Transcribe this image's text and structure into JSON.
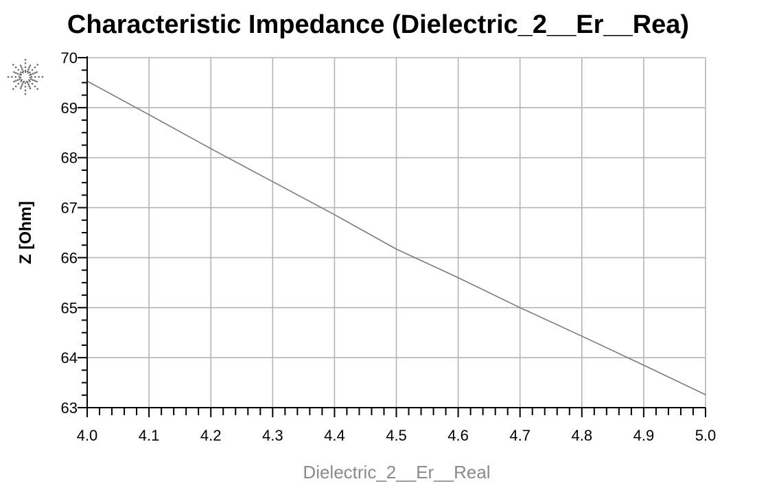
{
  "chart_data": {
    "type": "line",
    "title": "Characteristic Impedance (Dielectric_2__Er__Rea)",
    "xlabel": "Dielectric_2__Er__Real",
    "ylabel": "Z [Ohm]",
    "xlim": [
      4.0,
      5.0
    ],
    "ylim": [
      63,
      70
    ],
    "grid": true,
    "x_ticks": [
      "4.0",
      "4.1",
      "4.2",
      "4.3",
      "4.4",
      "4.5",
      "4.6",
      "4.7",
      "4.8",
      "4.9",
      "5.0"
    ],
    "y_ticks": [
      "63",
      "64",
      "65",
      "66",
      "67",
      "68",
      "69",
      "70"
    ],
    "series": [
      {
        "x": [
          4.0,
          4.1,
          4.2,
          4.3,
          4.4,
          4.5,
          4.6,
          4.7,
          4.8,
          4.9,
          5.0
        ],
        "y": [
          69.53,
          68.86,
          68.18,
          67.52,
          66.86,
          66.17,
          65.6,
          65.0,
          64.43,
          63.85,
          63.26
        ],
        "color": "#7a7a7a"
      }
    ]
  },
  "icons": {
    "logo": "sunburst-logo-icon"
  },
  "colors": {
    "grid": "#b4b4b4",
    "line": "#7a7a7a",
    "axis": "#000000",
    "xlabel": "#8a8a8a"
  }
}
